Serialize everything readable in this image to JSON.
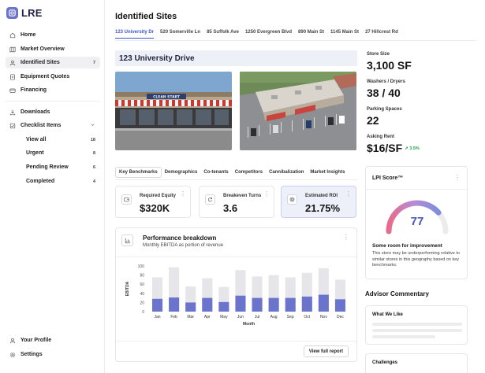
{
  "app": {
    "logo_text": "LRE",
    "accent": "#4a56b8",
    "bar_dark": "#6b74cc",
    "bar_light": "#e6e6ea"
  },
  "sidebar": {
    "items": [
      {
        "label": "Home",
        "icon": "home-icon"
      },
      {
        "label": "Market Overview",
        "icon": "map-icon"
      },
      {
        "label": "Identified Sites",
        "icon": "users-icon",
        "count": "7"
      },
      {
        "label": "Equipment Quotes",
        "icon": "document-icon"
      },
      {
        "label": "Financing",
        "icon": "card-icon"
      },
      {
        "label": "Downloads",
        "icon": "download-icon"
      },
      {
        "label": "Checklist Items",
        "icon": "checklist-icon",
        "chevron": "chevron-down-icon"
      }
    ],
    "checklist": [
      {
        "label": "View all",
        "count": "18"
      },
      {
        "label": "Urgent",
        "count": "8"
      },
      {
        "label": "Pending Review",
        "count": "6"
      },
      {
        "label": "Completed",
        "count": "4"
      }
    ],
    "footer": [
      {
        "label": "Your Profile",
        "icon": "user-icon"
      },
      {
        "label": "Settings",
        "icon": "gear-icon"
      }
    ]
  },
  "main": {
    "title": "Identified Sites",
    "tabs": [
      "123 University Dr",
      "520 Somerville Ln",
      "85 Suffolk Ave",
      "1250 Evergreen Blvd",
      "890 Main St",
      "1145 Main St",
      "27 Hillcrest Rd"
    ],
    "address": "123 University Drive",
    "storefront_sign": "CLEAN START"
  },
  "stats": {
    "store_size": {
      "label": "Store Size",
      "value": "3,100 SF"
    },
    "washers": {
      "label": "Washers / Dryers",
      "value": "38 / 40"
    },
    "parking": {
      "label": "Parking Spaces",
      "value": "22"
    },
    "rent": {
      "label": "Asking Rent",
      "value": "$16/SF",
      "delta": "3.5%"
    }
  },
  "subtabs": [
    "Key Benchmarks",
    "Demographics",
    "Co-tenants",
    "Competitors",
    "Cannibalization",
    "Market Insights"
  ],
  "metrics": [
    {
      "label": "Required Equity",
      "value": "$320K",
      "icon": "wallet-icon"
    },
    {
      "label": "Breakeven Turns",
      "value": "3.6",
      "icon": "refresh-icon"
    },
    {
      "label": "Estimated ROI",
      "value": "21.75%",
      "icon": "target-icon"
    }
  ],
  "performance": {
    "title": "Performance breakdown",
    "subtitle": "Monthly EBITDA as portion of revenue",
    "button": "View full report"
  },
  "chart_data": {
    "type": "bar",
    "categories": [
      "Jan",
      "Feb",
      "Mar",
      "Apr",
      "May",
      "Jun",
      "Jul",
      "Aug",
      "Sep",
      "Oct",
      "Nov",
      "Dec"
    ],
    "series": [
      {
        "values": [
          28,
          31,
          20,
          30,
          21,
          35,
          30,
          30,
          30,
          33,
          37,
          27
        ]
      },
      {
        "values": [
          75,
          97,
          55,
          73,
          54,
          91,
          77,
          80,
          75,
          85,
          95,
          70
        ]
      }
    ],
    "xlabel": "Month",
    "ylabel": "EBITDA",
    "yticks": [
      "0",
      "20",
      "40",
      "60",
      "80",
      "100"
    ],
    "ylim": [
      0,
      100
    ]
  },
  "lpi": {
    "title": "LPI Score™",
    "score": "77",
    "score_value": 77,
    "headline": "Some room for improvement",
    "description": "This store may be underperforming relative to similar stores in this geography based on key benchmarks."
  },
  "advisor": {
    "title": "Advisor Commentary",
    "card1": "What We Like",
    "card2": "Challenges"
  }
}
